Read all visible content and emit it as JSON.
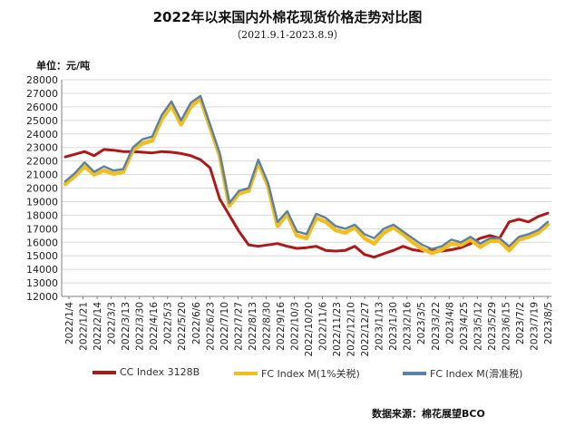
{
  "title": "2022年以来国内外棉花现货价格走势对比图",
  "subtitle": "（2021.9.1-2023.8.9）",
  "unit_label": "单位：元/吨",
  "source": "数据来源：棉花展望BCO",
  "colors": {
    "cc": "#b01818",
    "fc1": "#f2be1e",
    "fcs": "#5a82a8",
    "grid": "#d9d9d9",
    "axis": "#7f7f7f"
  },
  "chart_data": {
    "type": "line",
    "ylim": [
      12000,
      28000
    ],
    "yticks": [
      12000,
      13000,
      14000,
      15000,
      16000,
      17000,
      18000,
      19000,
      20000,
      21000,
      22000,
      23000,
      24000,
      25000,
      26000,
      27000,
      28000
    ],
    "x_tick_labels": [
      "2022/1/4",
      "2022/1/21",
      "2022/2/14",
      "2022/3/3",
      "2022/3/13",
      "2022/3/30",
      "2022/4/16",
      "2022/5/3",
      "2022/5/20",
      "2022/6/6",
      "2022/6/23",
      "2022/7/10",
      "2022/7/27",
      "2022/8/13",
      "2022/8/30",
      "2022/9/16",
      "2022/10/3",
      "2022/10/20",
      "2022/11/6",
      "2022/11/23",
      "2022/12/10",
      "2022/12/27",
      "2023/1/13",
      "2023/1/30",
      "2023/2/16",
      "2023/3/5",
      "2023/3/22",
      "2023/4/8",
      "2023/4/25",
      "2023/5/12",
      "2023/5/29",
      "2023/6/15",
      "2023/7/2",
      "2023/7/19",
      "2023/8/5"
    ],
    "grid": true,
    "legend_position": "bottom",
    "series": [
      {
        "name": "CC Index 3128B",
        "values": [
          22300,
          22500,
          22700,
          22400,
          22850,
          22800,
          22700,
          22700,
          22650,
          22600,
          22700,
          22650,
          22550,
          22400,
          22100,
          21500,
          19200,
          18000,
          16800,
          15800,
          15700,
          15800,
          15900,
          15700,
          15550,
          15600,
          15700,
          15400,
          15350,
          15400,
          15700,
          15100,
          14900,
          15150,
          15400,
          15700,
          15450,
          15350,
          15450,
          15350,
          15450,
          15600,
          15900,
          16300,
          16500,
          16300,
          17500,
          17700,
          17500,
          17900,
          18150
        ]
      },
      {
        "name": "FC Index M(1%关税)",
        "values": [
          20300,
          20900,
          21600,
          21000,
          21300,
          21050,
          21200,
          22800,
          23300,
          23500,
          25100,
          26100,
          24700,
          26000,
          26600,
          24500,
          22400,
          18700,
          19600,
          19800,
          21900,
          20200,
          17200,
          18100,
          16500,
          16300,
          17800,
          17500,
          16900,
          16700,
          17100,
          16300,
          15900,
          16700,
          17100,
          16600,
          16000,
          15500,
          15200,
          15450,
          15900,
          15800,
          16200,
          15650,
          16100,
          16100,
          15400,
          16200,
          16400,
          16700,
          17300
        ]
      },
      {
        "name": "FC Index M(滑准税)",
        "values": [
          20500,
          21100,
          21900,
          21200,
          21600,
          21300,
          21400,
          23000,
          23600,
          23800,
          25400,
          26400,
          25000,
          26300,
          26800,
          24700,
          22600,
          18900,
          19800,
          20000,
          22100,
          20400,
          17500,
          18300,
          16800,
          16600,
          18100,
          17800,
          17200,
          17000,
          17300,
          16600,
          16300,
          17000,
          17300,
          16800,
          16300,
          15800,
          15500,
          15700,
          16200,
          16000,
          16400,
          15900,
          16300,
          16300,
          15700,
          16400,
          16600,
          16900,
          17500
        ]
      }
    ]
  }
}
